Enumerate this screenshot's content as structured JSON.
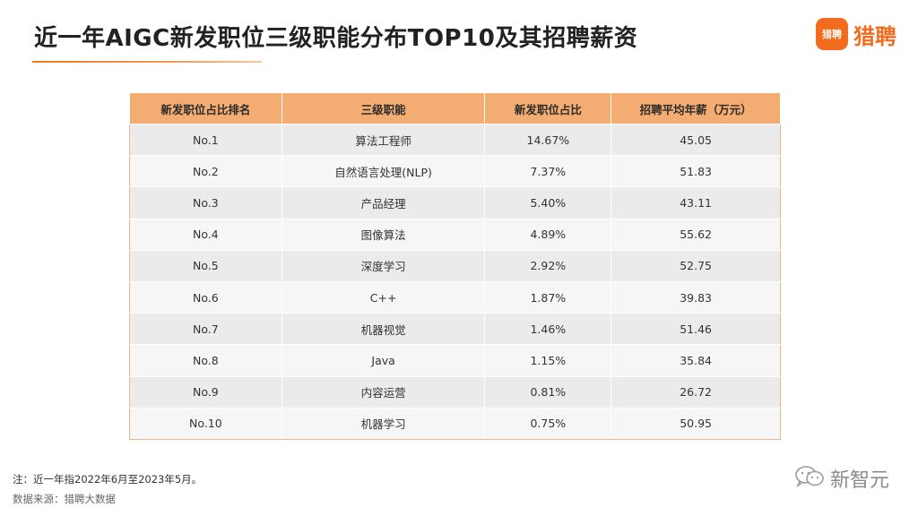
{
  "title": "近一年AIGC新发职位三级职能分布TOP10及其招聘薪资",
  "logo": {
    "mark_text": "猎聘",
    "text": "猎聘"
  },
  "table": {
    "headers": [
      "新发职位占比排名",
      "三级职能",
      "新发职位占比",
      "招聘平均年薪（万元）"
    ],
    "rows": [
      [
        "No.1",
        "算法工程师",
        "14.67%",
        "45.05"
      ],
      [
        "No.2",
        "自然语言处理(NLP)",
        "7.37%",
        "51.83"
      ],
      [
        "No.3",
        "产品经理",
        "5.40%",
        "43.11"
      ],
      [
        "No.4",
        "图像算法",
        "4.89%",
        "55.62"
      ],
      [
        "No.5",
        "深度学习",
        "2.92%",
        "52.75"
      ],
      [
        "No.6",
        "C++",
        "1.87%",
        "39.83"
      ],
      [
        "No.7",
        "机器视觉",
        "1.46%",
        "51.46"
      ],
      [
        "No.8",
        "Java",
        "1.15%",
        "35.84"
      ],
      [
        "No.9",
        "内容运营",
        "0.81%",
        "26.72"
      ],
      [
        "No.10",
        "机器学习",
        "0.75%",
        "50.95"
      ]
    ]
  },
  "footer": {
    "note": "注：近一年指2022年6月至2023年5月。",
    "source": "数据来源：猎聘大数据"
  },
  "watermark": {
    "text": "新智元",
    "icon": "wechat-icon"
  },
  "colors": {
    "accent": "#f26b1f",
    "header_bg": "#f3ac72"
  }
}
